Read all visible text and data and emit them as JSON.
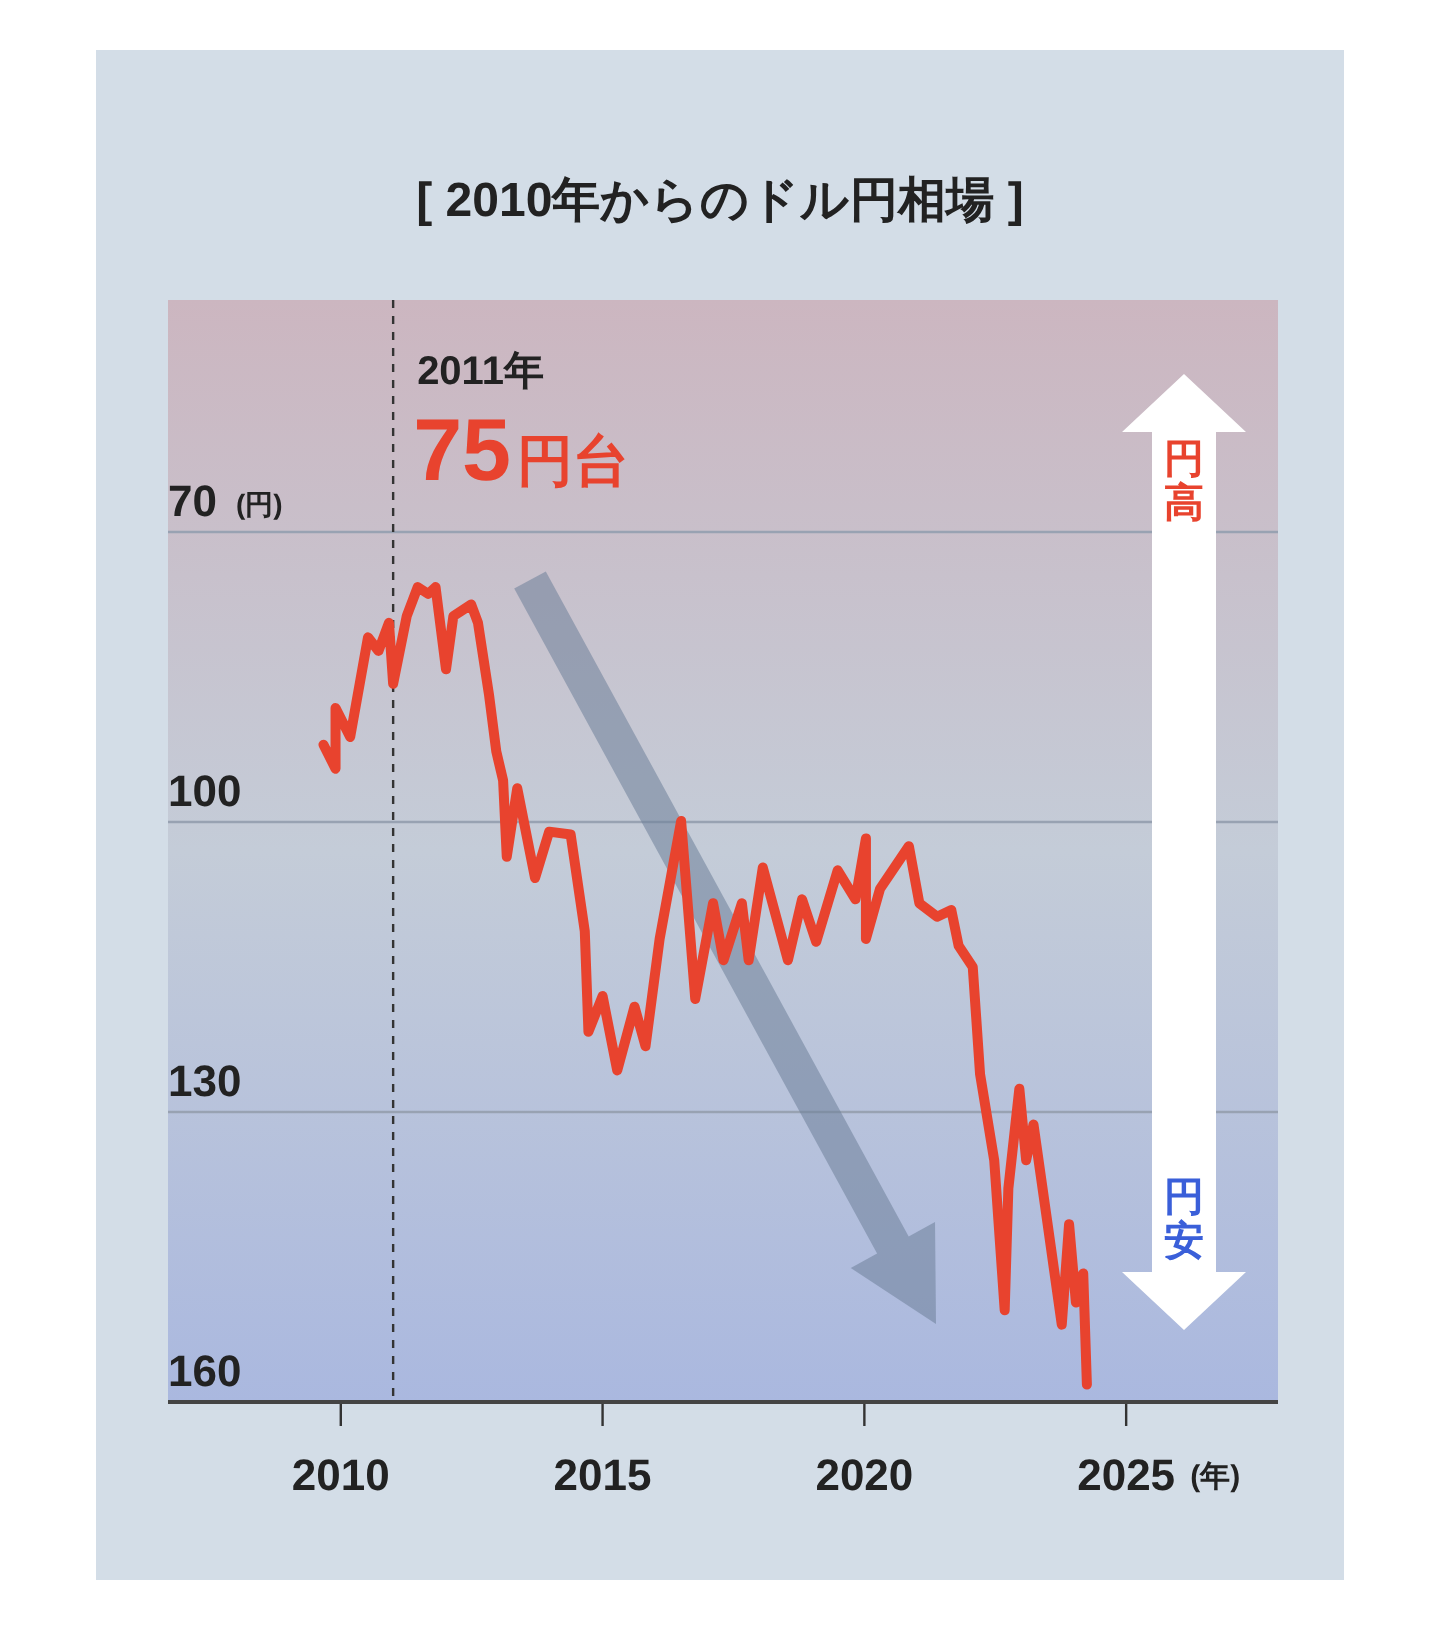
{
  "chart_data": {
    "type": "line",
    "title": "[ 2010年からのドル円相場 ]",
    "ylabel": "(円)",
    "xlabel": "(年)",
    "x": [
      2009.67,
      2009.9,
      2009.9,
      2010.18,
      2010.52,
      2010.72,
      2010.92,
      2011.0,
      2011.26,
      2011.47,
      2011.67,
      2011.81,
      2012.01,
      2012.15,
      2012.49,
      2012.62,
      2012.83,
      2012.97,
      2013.1,
      2013.17,
      2013.37,
      2013.71,
      2013.98,
      2014.39,
      2014.66,
      2014.73,
      2015.0,
      2015.28,
      2015.61,
      2015.82,
      2016.09,
      2016.5,
      2016.77,
      2017.11,
      2017.31,
      2017.66,
      2017.79,
      2018.06,
      2018.54,
      2018.81,
      2019.08,
      2019.49,
      2019.83,
      2020.03,
      2020.03,
      2020.3,
      2020.85,
      2021.05,
      2021.39,
      2021.66,
      2021.8,
      2022.07,
      2022.21,
      2022.48,
      2022.68,
      2022.75,
      2022.96,
      2023.09,
      2023.23,
      2023.5,
      2023.77,
      2023.91,
      2024.04,
      2024.18,
      2024.25
    ],
    "series": [
      {
        "color": "#e8432e",
        "values": [
          92.0,
          94.5,
          88.2,
          91.2,
          80.9,
          82.3,
          79.4,
          85.7,
          78.7,
          75.7,
          76.4,
          75.7,
          84.2,
          78.7,
          77.5,
          79.4,
          86.8,
          92.7,
          95.7,
          103.6,
          96.5,
          105.8,
          101.0,
          101.3,
          111.3,
          121.7,
          118.0,
          125.7,
          119.1,
          123.2,
          112.1,
          99.9,
          118.3,
          108.4,
          114.3,
          108.4,
          114.3,
          104.7,
          114.3,
          108.0,
          112.4,
          105.0,
          108.0,
          101.7,
          112.1,
          106.9,
          102.5,
          108.4,
          109.8,
          109.1,
          112.8,
          115.0,
          126.1,
          135.0,
          150.5,
          137.9,
          127.6,
          135.0,
          131.3,
          141.6,
          152.0,
          141.6,
          149.7,
          146.7,
          158.2
        ]
      }
    ],
    "xlim": [
      2006.7,
      2027.9
    ],
    "xticks": [
      2010,
      2015,
      2020,
      2025
    ],
    "ylim": [
      160,
      46
    ],
    "yticks": [
      70,
      100,
      130,
      160
    ],
    "grid": "y",
    "line_style": "solid",
    "ref_lines": [
      {
        "axis": "x",
        "value": 2011,
        "label": "2011年",
        "color": "#333333",
        "line_style": "dashed"
      }
    ],
    "annotations": [
      "75円台",
      "円高",
      "円安"
    ]
  }
}
